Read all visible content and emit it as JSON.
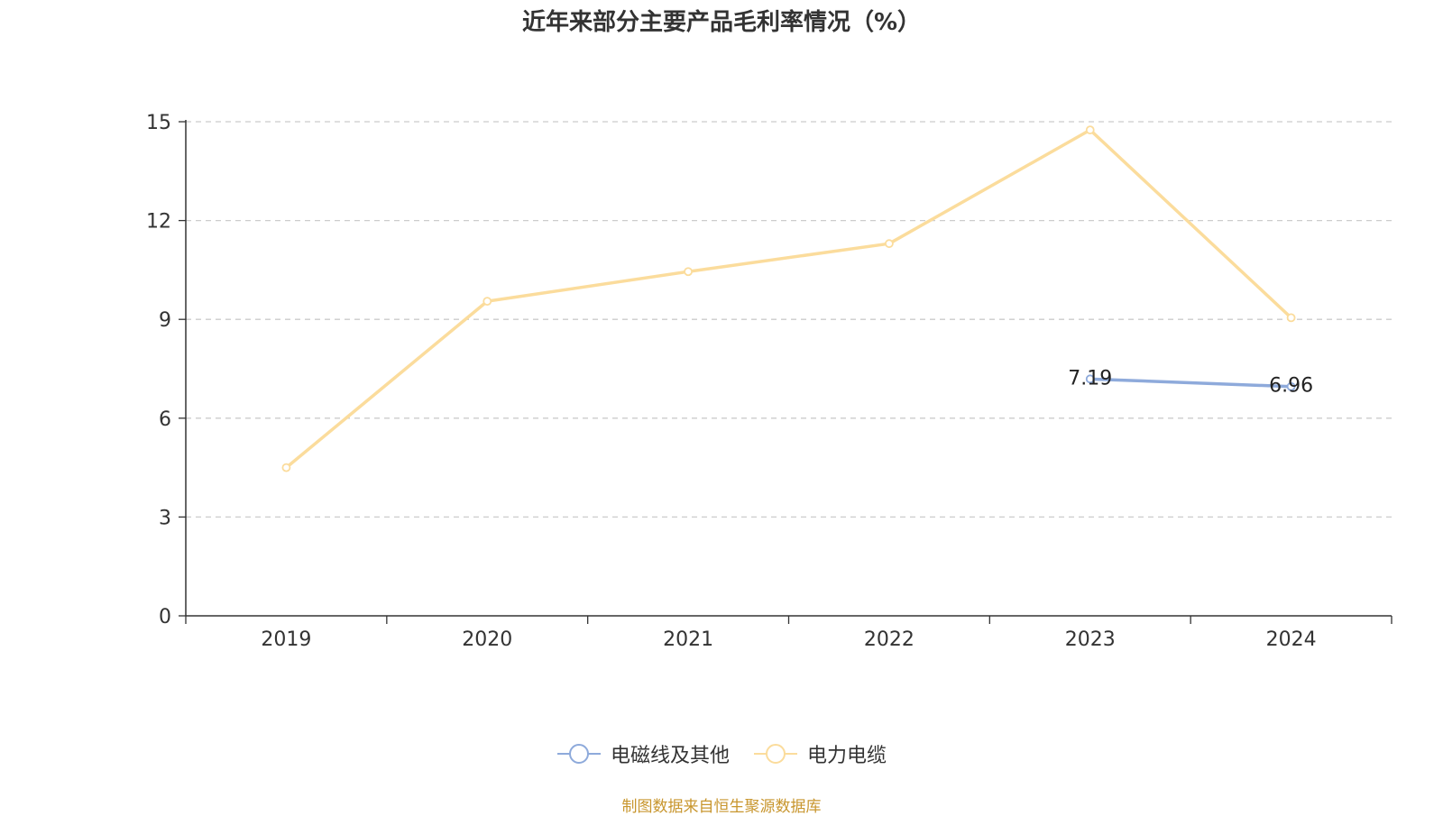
{
  "chart_data": {
    "type": "line",
    "title": "近年来部分主要产品毛利率情况（%）",
    "categories": [
      "2019",
      "2020",
      "2021",
      "2022",
      "2023",
      "2024"
    ],
    "ylim": [
      0,
      15
    ],
    "yticks": [
      0,
      3,
      6,
      9,
      12,
      15
    ],
    "grid": true,
    "legend_position": "bottom",
    "series": [
      {
        "name": "电磁线及其他",
        "color": "#8eaadb",
        "values": [
          null,
          null,
          null,
          null,
          7.19,
          6.96
        ],
        "labels": [
          "",
          "",
          "",
          "",
          "7.19",
          "6.96"
        ]
      },
      {
        "name": "电力电缆",
        "color": "#fbdc9c",
        "values": [
          4.5,
          9.55,
          10.45,
          11.3,
          14.75,
          9.05
        ],
        "labels": [
          "",
          "",
          "",
          "",
          "",
          ""
        ]
      }
    ]
  },
  "footer": {
    "source": "制图数据来自恒生聚源数据库"
  }
}
